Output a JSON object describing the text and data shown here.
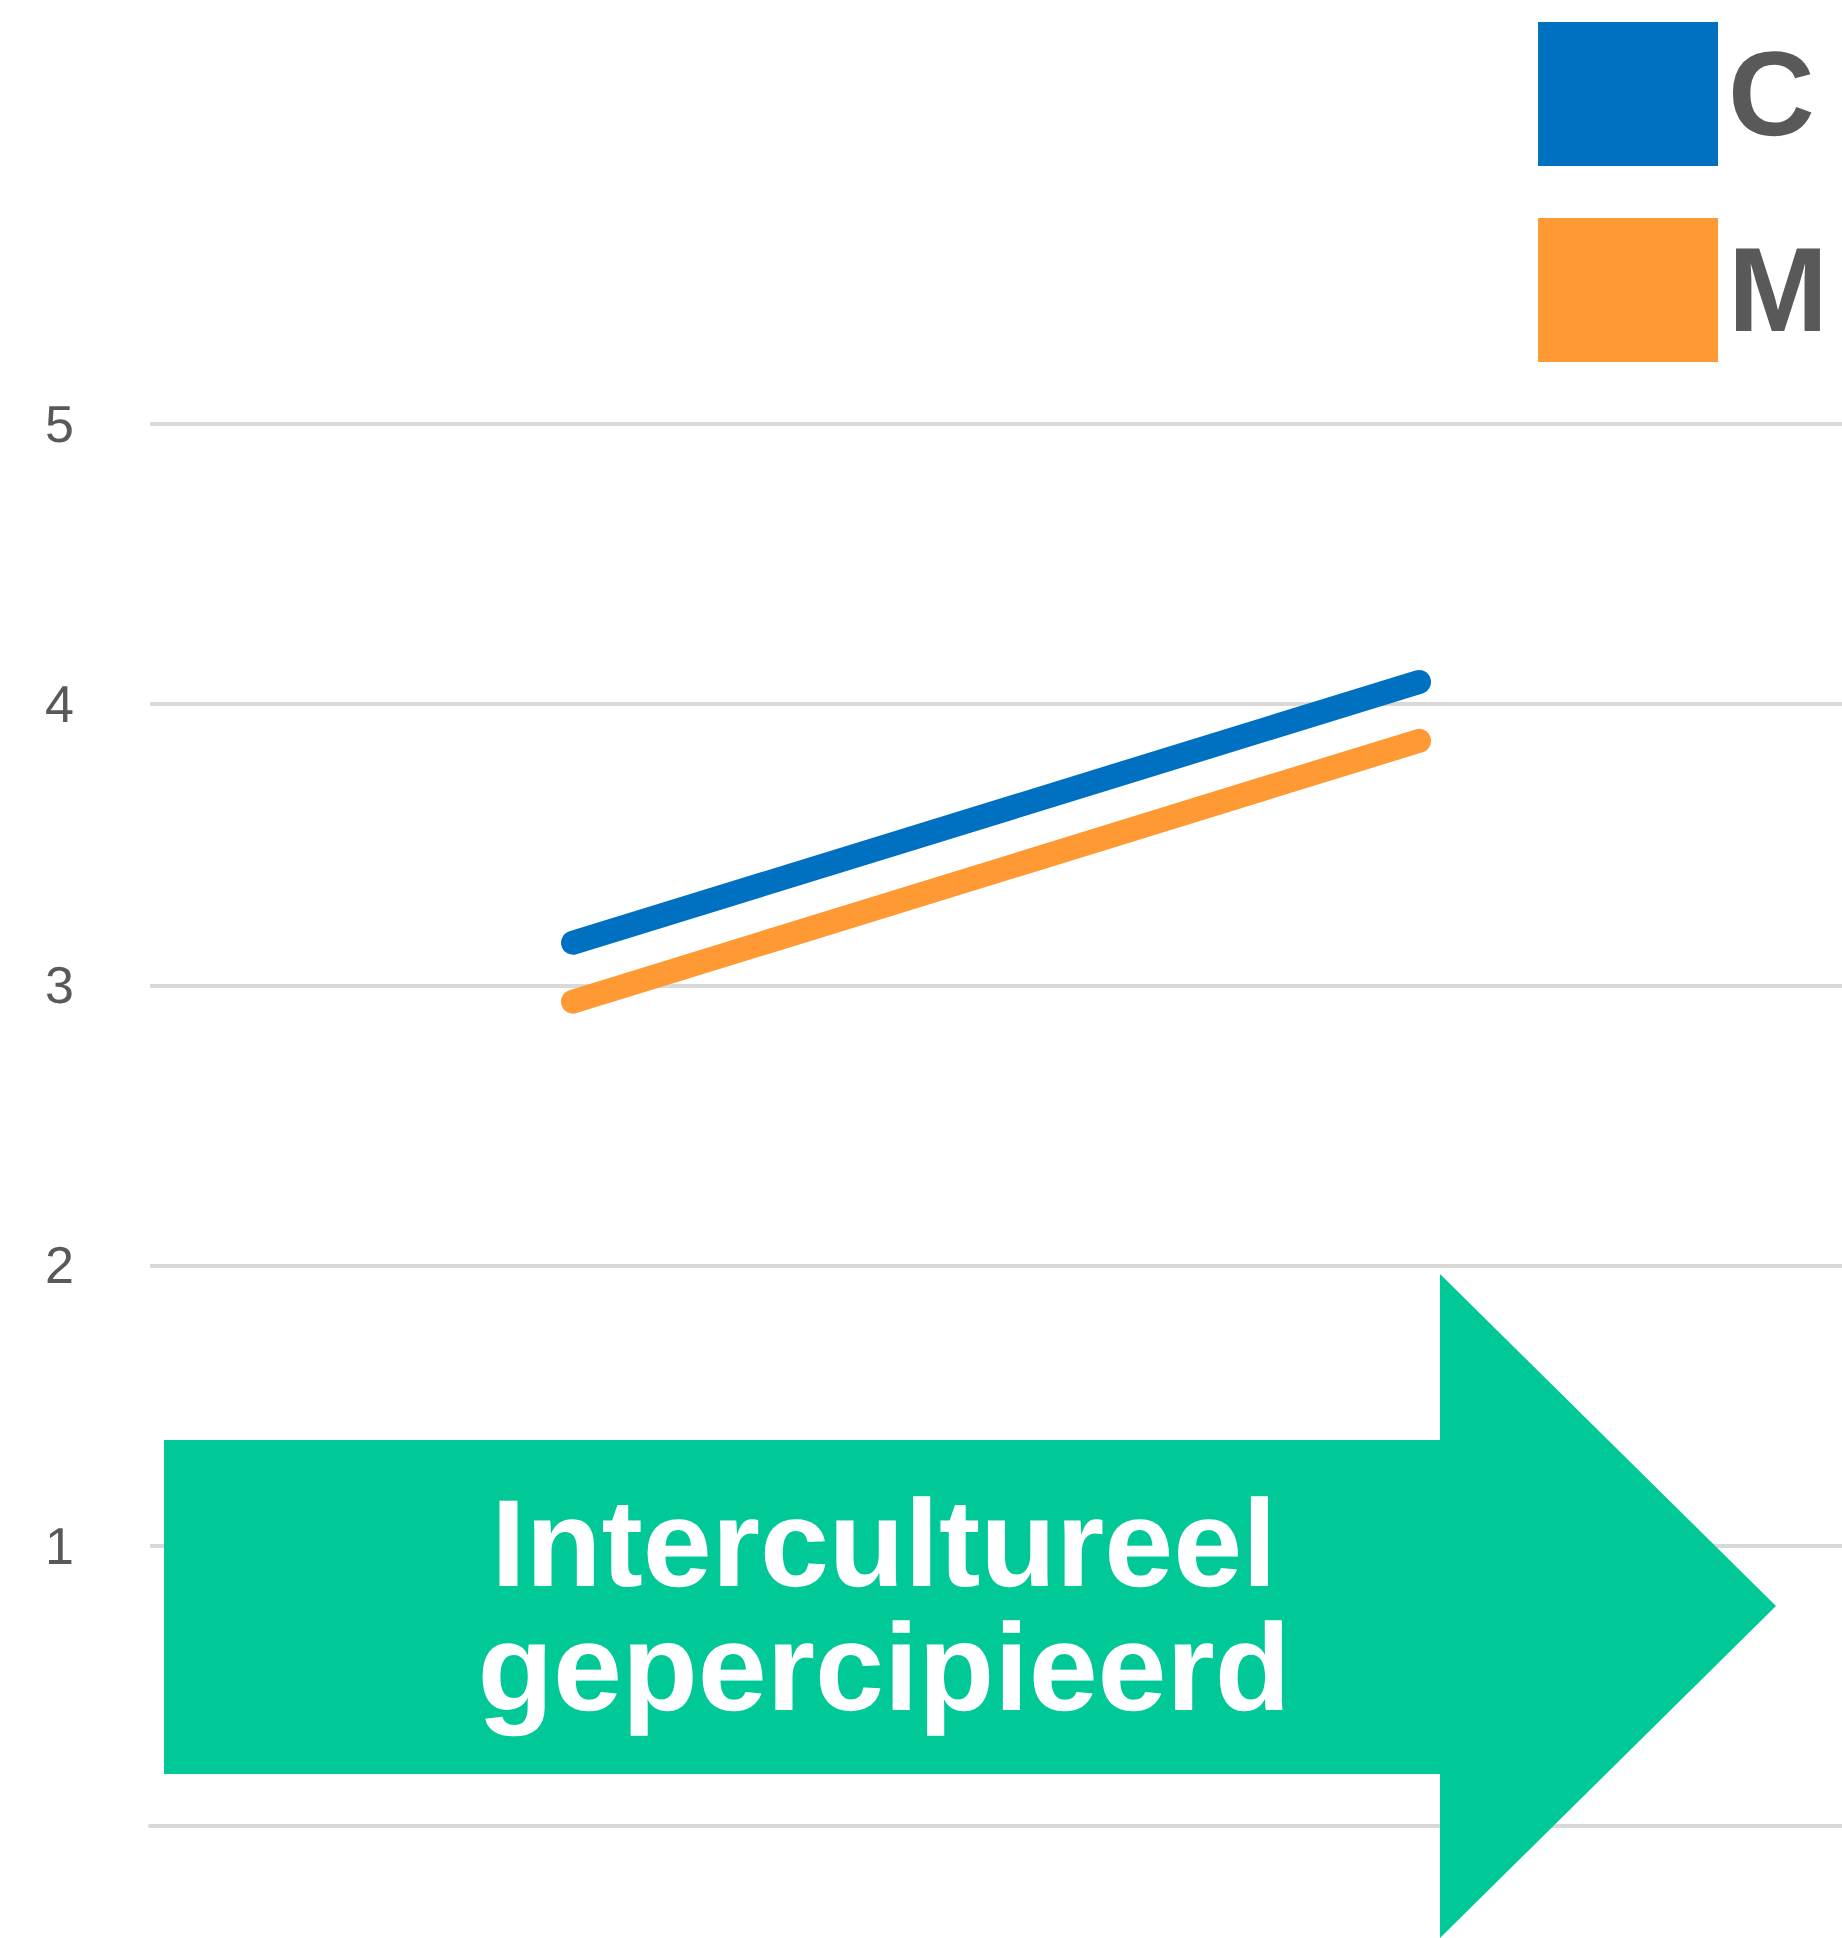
{
  "chart_data": {
    "type": "line",
    "categories": [
      null,
      null
    ],
    "series": [
      {
        "name": "C",
        "color": "#0070c0",
        "values": [
          3.15,
          4.08
        ]
      },
      {
        "name": "M",
        "color": "#ff9933",
        "values": [
          2.94,
          3.87
        ]
      }
    ],
    "ylim": [
      0,
      5
    ],
    "yticks": [
      1,
      2,
      3,
      4,
      5
    ],
    "grid": "y",
    "legend": "top right",
    "line_style": "solid",
    "annotations": [
      "Intercultureel\ngepercipieerd"
    ]
  }
}
